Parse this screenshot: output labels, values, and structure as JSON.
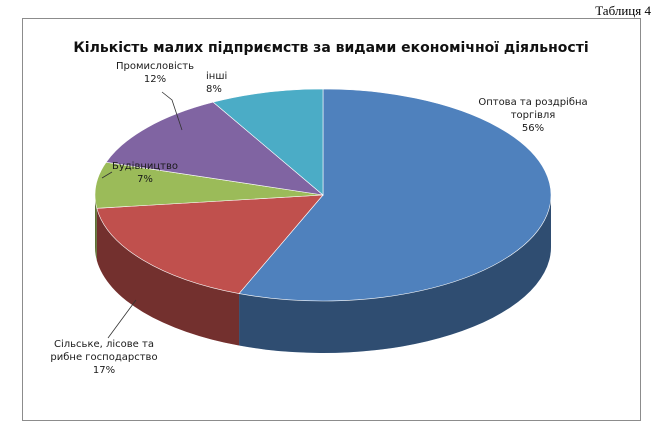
{
  "note": "Таблиця 4",
  "chart_data": {
    "type": "pie",
    "title": "Кількість малих підприємств за видами економічної діяльності",
    "categories": [
      "Оптова та роздрібна торгівля",
      "Сільське, лісове та рибне господарство",
      "Будівництво",
      "Промисловість",
      "інші"
    ],
    "values": [
      56,
      17,
      7,
      12,
      8
    ],
    "value_labels": [
      "56%",
      "17%",
      "7%",
      "12%",
      "8%"
    ],
    "colors": [
      "#4f81bd",
      "#c0504d",
      "#9bbb59",
      "#8064a2",
      "#4bacc6"
    ]
  }
}
